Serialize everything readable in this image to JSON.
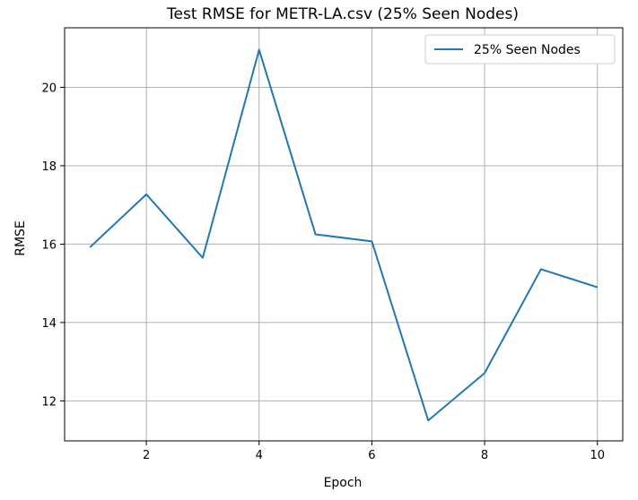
{
  "chart_data": {
    "type": "line",
    "title": "Test RMSE for METR-LA.csv (25% Seen Nodes)",
    "xlabel": "Epoch",
    "ylabel": "RMSE",
    "xlim": [
      0.55,
      10.45
    ],
    "ylim": [
      10.98,
      21.52
    ],
    "xticks": [
      2,
      4,
      6,
      8,
      10
    ],
    "yticks": [
      12,
      14,
      16,
      18,
      20
    ],
    "grid": true,
    "legend_position": "top-right",
    "series": [
      {
        "name": "25% Seen Nodes",
        "color": "#1f77b4",
        "x": [
          1,
          2,
          3,
          4,
          5,
          6,
          7,
          8,
          9,
          10
        ],
        "y": [
          15.92,
          17.27,
          15.65,
          20.96,
          16.25,
          16.07,
          11.5,
          12.71,
          15.36,
          14.9
        ]
      }
    ]
  }
}
